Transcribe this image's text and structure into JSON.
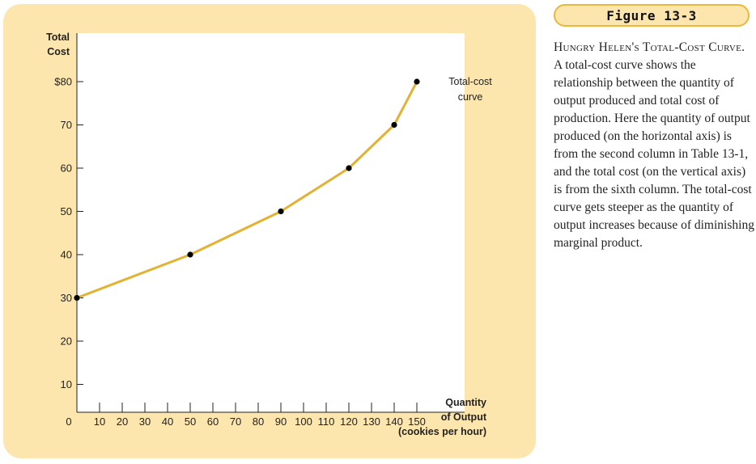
{
  "figure": {
    "label": "Figure 13-3",
    "caption_title": "Hungry Helen's Total-Cost Curve.",
    "caption_body": "A total-cost curve shows the relationship between the quantity of output produced and total cost of production. Here the quantity of output produced (on the horizontal axis) is from the second column in Table 13-1, and the total cost (on the vertical axis) is from the sixth column. The total-cost curve gets steeper as the quantity of output increases because of diminishing marginal product."
  },
  "colors": {
    "panel": "#fde6ad",
    "badge_border": "#e8b93a",
    "curve": "#e3b234",
    "point": "#000000"
  },
  "chart_data": {
    "type": "line",
    "ylabel_lines": [
      "Total",
      "Cost"
    ],
    "xlabel_lines": [
      "Quantity",
      "of Output",
      "(cookies per hour)"
    ],
    "origin_label": "0",
    "xlim": [
      0,
      150
    ],
    "ylim": [
      0,
      80
    ],
    "x_ticks": [
      10,
      20,
      30,
      40,
      50,
      60,
      70,
      80,
      90,
      100,
      110,
      120,
      130,
      140,
      150
    ],
    "y_ticks": [
      10,
      20,
      30,
      40,
      50,
      60,
      70,
      80
    ],
    "y_tick_labels": [
      "10",
      "20",
      "30",
      "40",
      "50",
      "60",
      "70",
      "$80"
    ],
    "series": [
      {
        "name": "Total-cost curve",
        "name_lines": [
          "Total-cost",
          "curve"
        ],
        "x": [
          0,
          50,
          90,
          120,
          140,
          150
        ],
        "y": [
          30,
          40,
          50,
          60,
          70,
          80
        ]
      }
    ]
  }
}
